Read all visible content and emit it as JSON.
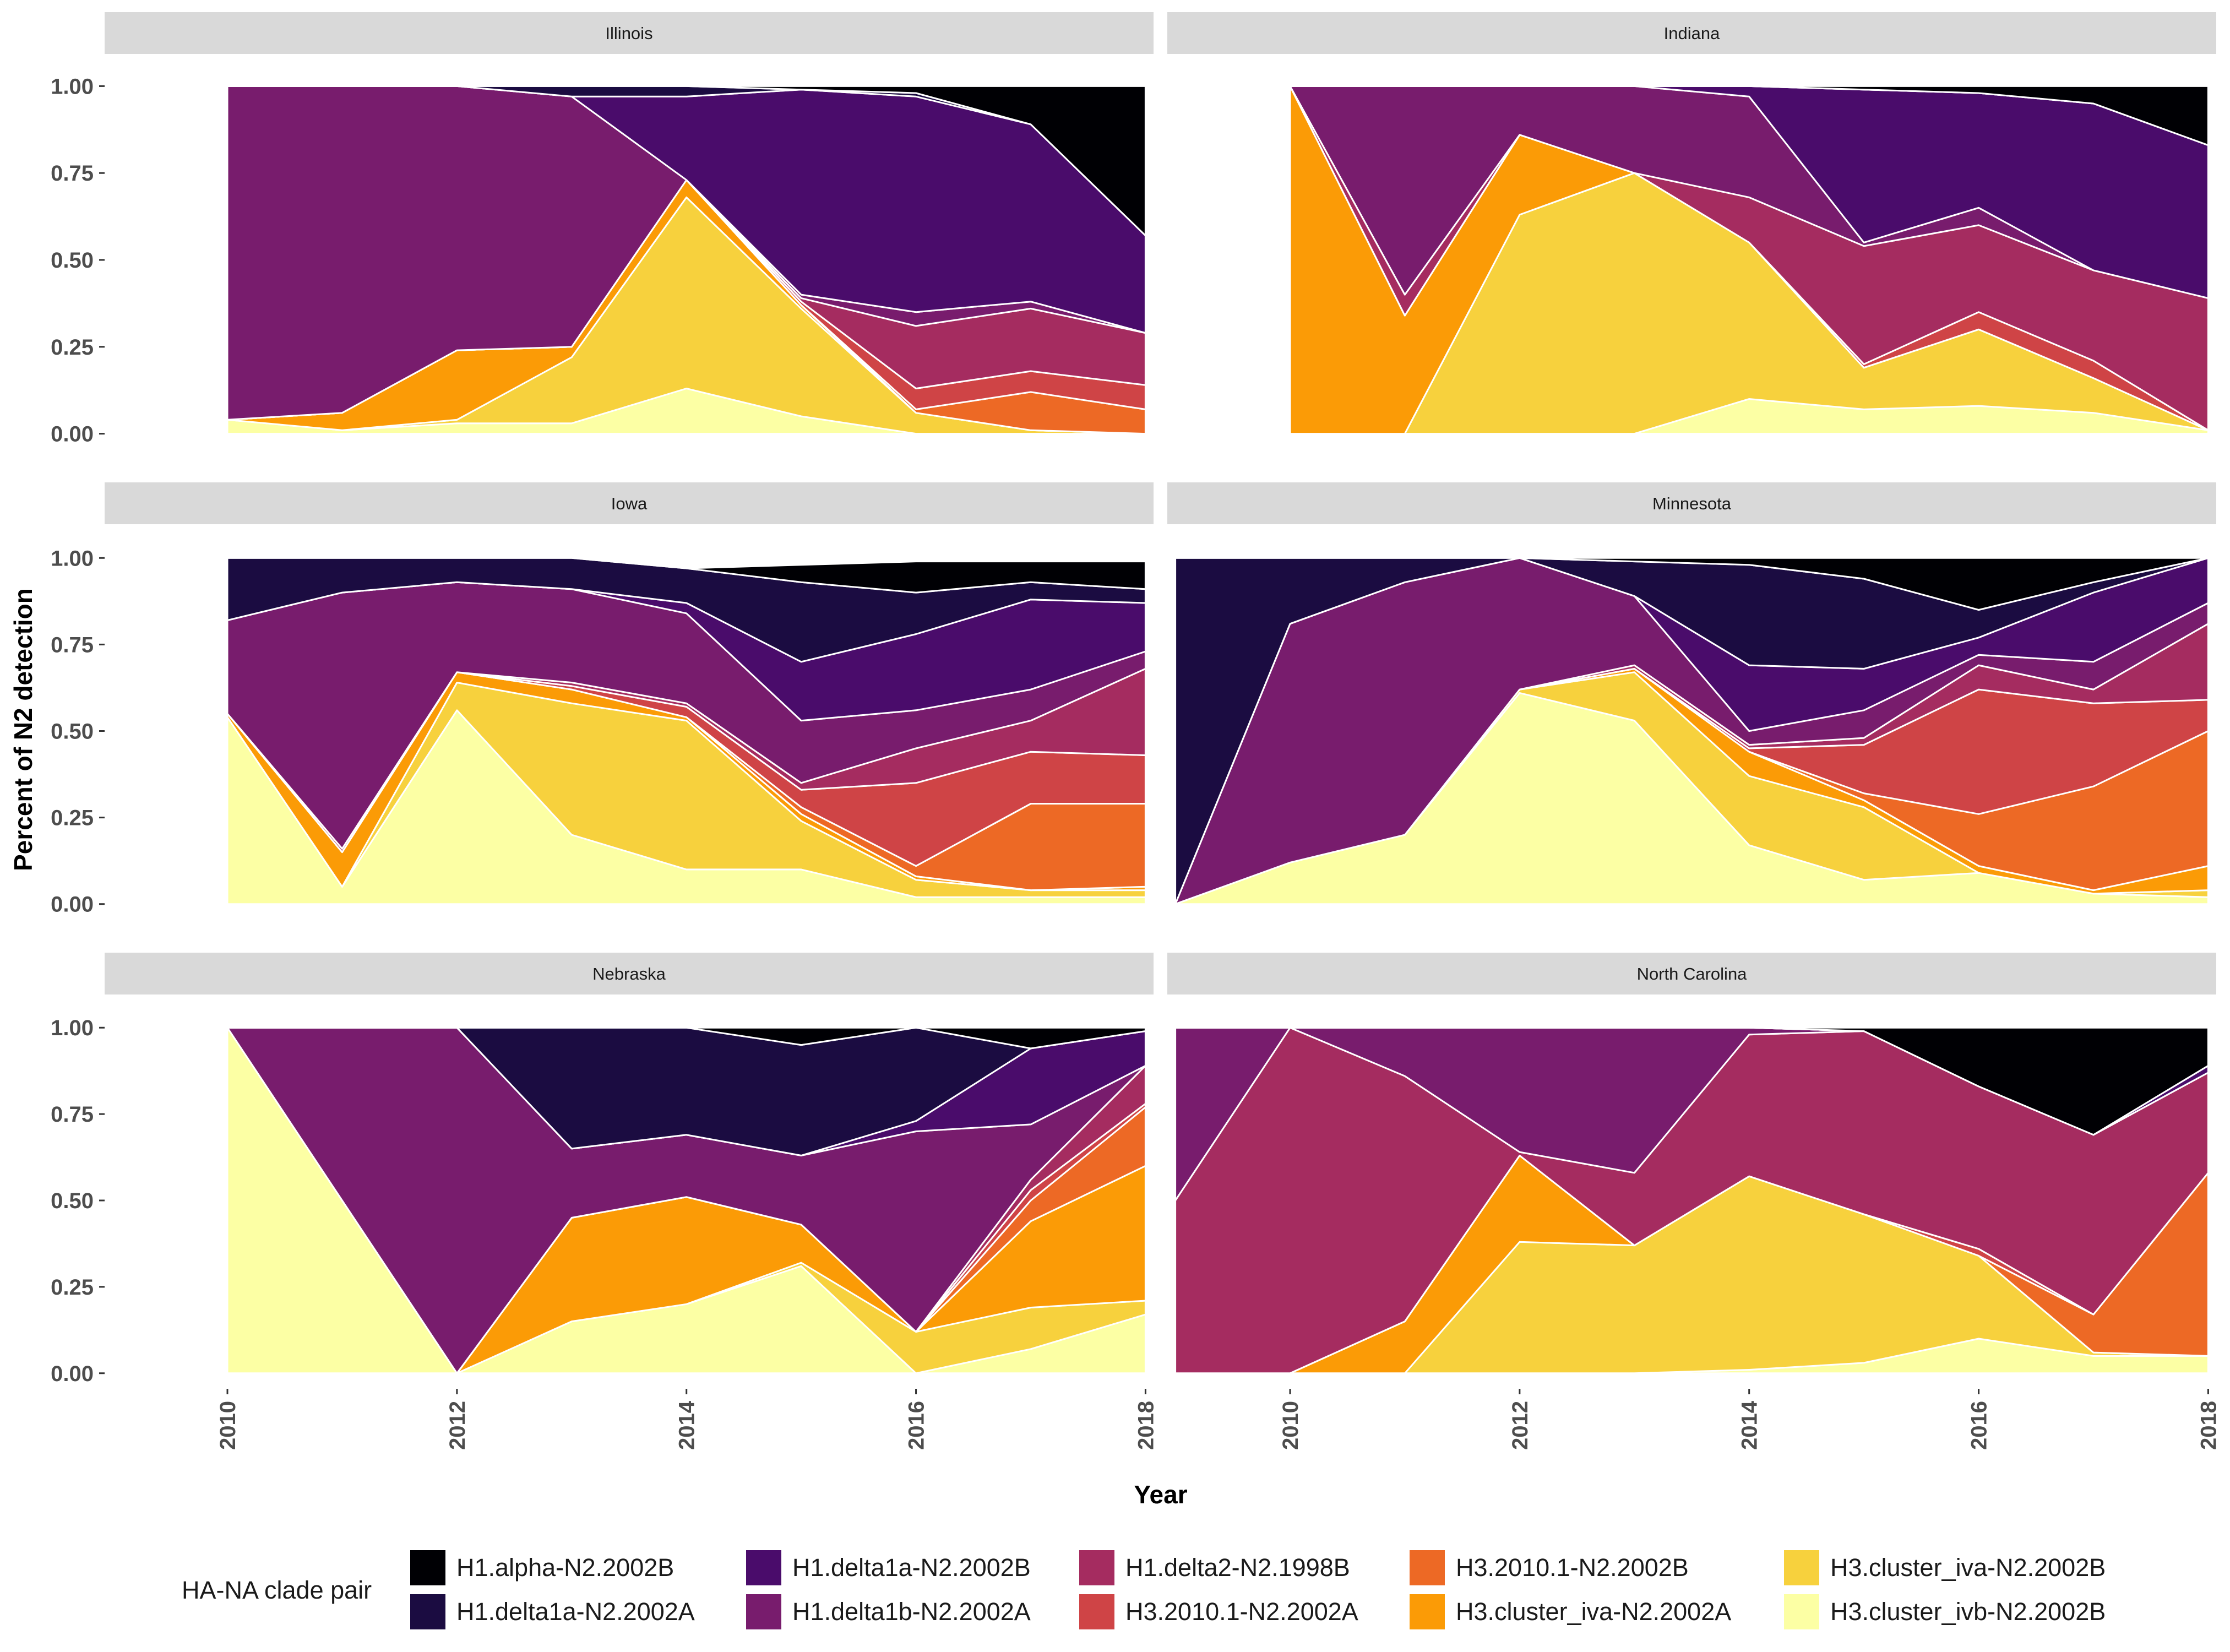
{
  "chart_data": {
    "type": "area",
    "ylabel": "Percent of N2 detection",
    "xlabel": "Year",
    "ylim": [
      0,
      1
    ],
    "yticks": [
      "0.00",
      "0.25",
      "0.50",
      "0.75",
      "1.00"
    ],
    "xticks": [
      "2010",
      "2012",
      "2014",
      "2016",
      "2018"
    ],
    "grid": false,
    "legend_title": "HA-NA clade pair",
    "legend_position": "bottom",
    "series_order": [
      "H1.alpha-N2.2002B",
      "H1.delta1a-N2.2002A",
      "H1.delta1a-N2.2002B",
      "H1.delta1b-N2.2002A",
      "H1.delta2-N2.1998B",
      "H3.2010.1-N2.2002A",
      "H3.2010.1-N2.2002B",
      "H3.cluster_iva-N2.2002A",
      "H3.cluster_iva-N2.2002B",
      "H3.cluster_ivb-N2.2002B"
    ],
    "colors": [
      "#000004",
      "#1B0C41",
      "#4A0C6B",
      "#781C6D",
      "#A52C60",
      "#CF4446",
      "#ED6925",
      "#FB9B06",
      "#F7D13D",
      "#FCFFA4"
    ],
    "panels": [
      {
        "title": "Illinois",
        "x": [
          2010,
          2011,
          2012,
          2013,
          2014,
          2015,
          2016,
          2017,
          2018
        ],
        "values": {
          "H1.alpha-N2.2002B": [
            0,
            0,
            0,
            0,
            0,
            0.01,
            0.02,
            0.11,
            0.43
          ],
          "H1.delta1a-N2.2002A": [
            0,
            0,
            0,
            0.03,
            0.03,
            0,
            0.01,
            0,
            0
          ],
          "H1.delta1a-N2.2002B": [
            0,
            0,
            0,
            0,
            0.24,
            0.59,
            0.62,
            0.51,
            0.28
          ],
          "H1.delta1b-N2.2002A": [
            0.96,
            0.94,
            0.76,
            0.72,
            0,
            0.01,
            0.04,
            0.02,
            0
          ],
          "H1.delta2-N2.1998B": [
            0,
            0,
            0,
            0,
            0,
            0.01,
            0.18,
            0.18,
            0.15
          ],
          "H3.2010.1-N2.2002A": [
            0,
            0,
            0,
            0,
            0,
            0.01,
            0.06,
            0.06,
            0.07
          ],
          "H3.2010.1-N2.2002B": [
            0,
            0,
            0,
            0,
            0,
            0,
            0.01,
            0.11,
            0.07
          ],
          "H3.cluster_iva-N2.2002A": [
            0,
            0.05,
            0.2,
            0.03,
            0.05,
            0.01,
            0,
            0,
            0
          ],
          "H3.cluster_iva-N2.2002B": [
            0,
            0,
            0.01,
            0.19,
            0.55,
            0.31,
            0.06,
            0.01,
            0
          ],
          "H3.cluster_ivb-N2.2002B": [
            0.04,
            0.01,
            0.03,
            0.03,
            0.13,
            0.05,
            0,
            0,
            0
          ]
        }
      },
      {
        "title": "Indiana",
        "x": [
          2010,
          2011,
          2012,
          2013,
          2014,
          2015,
          2016,
          2017,
          2018
        ],
        "values": {
          "H1.alpha-N2.2002B": [
            0,
            0,
            0,
            0,
            0,
            0.01,
            0.02,
            0.05,
            0.17
          ],
          "H1.delta1a-N2.2002A": [
            0,
            0,
            0,
            0,
            0,
            0,
            0,
            0,
            0
          ],
          "H1.delta1a-N2.2002B": [
            0,
            0,
            0,
            0,
            0.03,
            0.44,
            0.33,
            0.48,
            0.44
          ],
          "H1.delta1b-N2.2002A": [
            0,
            0.6,
            0.14,
            0.25,
            0.29,
            0.01,
            0.05,
            0,
            0
          ],
          "H1.delta2-N2.1998B": [
            0,
            0.06,
            0,
            0,
            0.13,
            0.34,
            0.25,
            0.26,
            0.38
          ],
          "H3.2010.1-N2.2002A": [
            0,
            0,
            0,
            0,
            0,
            0.01,
            0.05,
            0.05,
            0
          ],
          "H3.2010.1-N2.2002B": [
            0,
            0,
            0,
            0,
            0,
            0,
            0,
            0,
            0
          ],
          "H3.cluster_iva-N2.2002A": [
            1.0,
            0.34,
            0.23,
            0,
            0,
            0,
            0,
            0,
            0
          ],
          "H3.cluster_iva-N2.2002B": [
            0,
            0,
            0.63,
            0.75,
            0.45,
            0.12,
            0.22,
            0.1,
            0
          ],
          "H3.cluster_ivb-N2.2002B": [
            0,
            0,
            0,
            0,
            0.1,
            0.07,
            0.08,
            0.06,
            0.01
          ]
        }
      },
      {
        "title": "Iowa",
        "x": [
          2010,
          2011,
          2012,
          2013,
          2014,
          2015,
          2016,
          2017,
          2018
        ],
        "values": {
          "H1.alpha-N2.2002B": [
            0,
            0,
            0,
            0,
            0,
            0.05,
            0.09,
            0.06,
            0.08
          ],
          "H1.delta1a-N2.2002A": [
            0.18,
            0.1,
            0.07,
            0.1,
            0.1,
            0.23,
            0.12,
            0.05,
            0.04
          ],
          "H1.delta1a-N2.2002B": [
            0,
            0,
            0,
            0,
            0.03,
            0.17,
            0.22,
            0.26,
            0.14
          ],
          "H1.delta1b-N2.2002A": [
            0.27,
            0.74,
            0.26,
            0.27,
            0.26,
            0.18,
            0.11,
            0.09,
            0.05
          ],
          "H1.delta2-N2.1998B": [
            0,
            0.01,
            0,
            0.01,
            0.01,
            0.02,
            0.1,
            0.09,
            0.25
          ],
          "H3.2010.1-N2.2002A": [
            0,
            0,
            0,
            0.01,
            0.03,
            0.05,
            0.24,
            0.15,
            0.14
          ],
          "H3.2010.1-N2.2002B": [
            0,
            0,
            0,
            0,
            0,
            0.02,
            0.03,
            0.25,
            0.24
          ],
          "H3.cluster_iva-N2.2002A": [
            0.01,
            0.1,
            0.03,
            0.04,
            0.01,
            0.02,
            0.01,
            0,
            0.01
          ],
          "H3.cluster_iva-N2.2002B": [
            0,
            0,
            0.08,
            0.38,
            0.43,
            0.14,
            0.05,
            0.02,
            0.02
          ],
          "H3.cluster_ivb-N2.2002B": [
            0.54,
            0.05,
            0.56,
            0.2,
            0.1,
            0.1,
            0.02,
            0.02,
            0.02
          ]
        }
      },
      {
        "title": "Minnesota",
        "x": [
          2009,
          2010,
          2011,
          2012,
          2013,
          2014,
          2015,
          2016,
          2017,
          2018
        ],
        "values": {
          "H1.alpha-N2.2002B": [
            0,
            0,
            0,
            0,
            0.01,
            0.02,
            0.06,
            0.15,
            0.07,
            0
          ],
          "H1.delta1a-N2.2002A": [
            1.0,
            0.19,
            0.07,
            0,
            0.1,
            0.29,
            0.26,
            0.08,
            0.03,
            0
          ],
          "H1.delta1a-N2.2002B": [
            0,
            0,
            0,
            0,
            0,
            0.19,
            0.12,
            0.05,
            0.2,
            0.13
          ],
          "H1.delta1b-N2.2002A": [
            0,
            0.69,
            0.73,
            0.38,
            0.2,
            0.04,
            0.08,
            0.03,
            0.08,
            0.06
          ],
          "H1.delta2-N2.1998B": [
            0,
            0,
            0,
            0,
            0.01,
            0.01,
            0.02,
            0.07,
            0.04,
            0.22
          ],
          "H3.2010.1-N2.2002A": [
            0,
            0,
            0,
            0,
            0,
            0.01,
            0.14,
            0.36,
            0.24,
            0.09
          ],
          "H3.2010.1-N2.2002B": [
            0,
            0,
            0,
            0,
            0,
            0,
            0.02,
            0.15,
            0.3,
            0.39
          ],
          "H3.cluster_iva-N2.2002A": [
            0,
            0,
            0,
            0,
            0.01,
            0.07,
            0.02,
            0.02,
            0.01,
            0.07
          ],
          "H3.cluster_iva-N2.2002B": [
            0,
            0,
            0,
            0.01,
            0.14,
            0.2,
            0.21,
            0,
            0,
            0.02
          ],
          "H3.cluster_ivb-N2.2002B": [
            0,
            0.12,
            0.2,
            0.61,
            0.53,
            0.17,
            0.07,
            0.09,
            0.03,
            0.02
          ]
        }
      },
      {
        "title": "Nebraska",
        "x": [
          2010,
          2011,
          2012,
          2013,
          2014,
          2015,
          2016,
          2017,
          2018
        ],
        "values": {
          "H1.alpha-N2.2002B": [
            0,
            0,
            0,
            0,
            0,
            0.05,
            0,
            0.06,
            0.01
          ],
          "H1.delta1a-N2.2002A": [
            0,
            0,
            0,
            0.35,
            0.31,
            0.32,
            0.27,
            0,
            0
          ],
          "H1.delta1a-N2.2002B": [
            0,
            0,
            0,
            0,
            0,
            0,
            0.03,
            0.22,
            0.1
          ],
          "H1.delta1b-N2.2002A": [
            0,
            0.5,
            1.0,
            0.2,
            0.18,
            0.2,
            0.58,
            0.16,
            0
          ],
          "H1.delta2-N2.1998B": [
            0,
            0,
            0,
            0,
            0,
            0,
            0,
            0.03,
            0.11
          ],
          "H3.2010.1-N2.2002A": [
            0,
            0,
            0,
            0,
            0,
            0,
            0,
            0.03,
            0.01
          ],
          "H3.2010.1-N2.2002B": [
            0,
            0,
            0,
            0,
            0,
            0,
            0,
            0.06,
            0.17
          ],
          "H3.cluster_iva-N2.2002A": [
            0,
            0,
            0,
            0.3,
            0.31,
            0.11,
            0,
            0.25,
            0.39
          ],
          "H3.cluster_iva-N2.2002B": [
            0,
            0,
            0,
            0,
            0,
            0.01,
            0.12,
            0.12,
            0.04
          ],
          "H3.cluster_ivb-N2.2002B": [
            1.0,
            0.5,
            0,
            0.15,
            0.2,
            0.31,
            0,
            0.07,
            0.17
          ]
        }
      },
      {
        "title": "North Carolina",
        "x": [
          2009,
          2010,
          2011,
          2012,
          2013,
          2014,
          2015,
          2016,
          2017,
          2018
        ],
        "values": {
          "H1.alpha-N2.2002B": [
            0,
            0,
            0,
            0,
            0,
            0,
            0.01,
            0.17,
            0.31,
            0.11
          ],
          "H1.delta1a-N2.2002A": [
            0,
            0,
            0,
            0,
            0,
            0,
            0,
            0,
            0,
            0
          ],
          "H1.delta1a-N2.2002B": [
            0,
            0,
            0,
            0,
            0,
            0,
            0,
            0,
            0,
            0.02
          ],
          "H1.delta1b-N2.2002A": [
            0.5,
            0,
            0.14,
            0.37,
            0.42,
            0.02,
            0,
            0,
            0,
            0
          ],
          "H1.delta2-N2.1998B": [
            0.5,
            1.0,
            0.71,
            0.01,
            0.21,
            0.41,
            0.53,
            0.47,
            0.52,
            0.29
          ],
          "H3.2010.1-N2.2002A": [
            0,
            0,
            0,
            0,
            0,
            0,
            0,
            0.02,
            0,
            0
          ],
          "H3.2010.1-N2.2002B": [
            0,
            0,
            0,
            0,
            0,
            0,
            0,
            0,
            0.11,
            0.53
          ],
          "H3.cluster_iva-N2.2002A": [
            0,
            0,
            0.15,
            0.25,
            0,
            0,
            0,
            0,
            0,
            0
          ],
          "H3.cluster_iva-N2.2002B": [
            0,
            0,
            0,
            0.38,
            0.37,
            0.56,
            0.43,
            0.24,
            0.01,
            0
          ],
          "H3.cluster_ivb-N2.2002B": [
            0,
            0,
            0,
            0,
            0,
            0.01,
            0.03,
            0.1,
            0.05,
            0.05
          ]
        }
      }
    ]
  }
}
